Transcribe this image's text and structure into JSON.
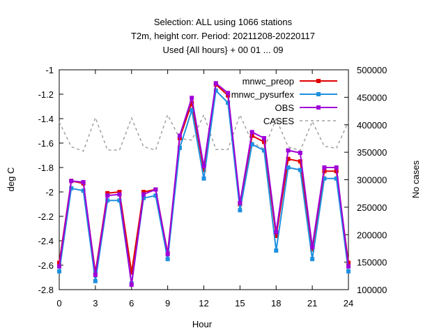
{
  "chart_data": {
    "type": "line",
    "title_lines": [
      "Selection: ALL using  1066 stations",
      "T2m, height corr.   Period: 20211208-20220117",
      "Used {All hours} + 00 01 ... 09"
    ],
    "xlabel": "Hour",
    "ylabel": "deg C",
    "y2label": "No cases",
    "xlim": [
      0,
      24
    ],
    "ylim": [
      -2.8,
      -1.0
    ],
    "y2lim": [
      100000,
      500000
    ],
    "x_ticks": [
      "0",
      "3",
      "6",
      "9",
      "12",
      "15",
      "18",
      "21",
      "24"
    ],
    "y_ticks": [
      "-1",
      "-1.2",
      "-1.4",
      "-1.6",
      "-1.8",
      "-2",
      "-2.2",
      "-2.4",
      "-2.6",
      "-2.8"
    ],
    "y2_ticks": [
      "500000",
      "450000",
      "400000",
      "350000",
      "300000",
      "250000",
      "200000",
      "150000",
      "100000"
    ],
    "grid": false,
    "legend_position": "top-right",
    "x": [
      0,
      1,
      2,
      3,
      4,
      5,
      6,
      7,
      8,
      9,
      10,
      11,
      12,
      13,
      14,
      15,
      16,
      17,
      18,
      19,
      20,
      21,
      22,
      23,
      24
    ],
    "series": [
      {
        "name": "mnwc_preop",
        "color": "#e00000",
        "axis": "y",
        "style": "line-square",
        "values": [
          -2.58,
          -1.91,
          -1.93,
          -2.66,
          -2.01,
          -2.0,
          -2.66,
          -2.0,
          -1.98,
          -2.5,
          -1.56,
          -1.27,
          -1.82,
          -1.12,
          -1.21,
          -2.1,
          -1.54,
          -1.59,
          -2.36,
          -1.73,
          -1.75,
          -2.47,
          -1.83,
          -1.83,
          -2.58
        ]
      },
      {
        "name": "mnwc_pysurfex",
        "color": "#1e90e0",
        "axis": "y",
        "style": "line-square",
        "values": [
          -2.65,
          -1.97,
          -1.99,
          -2.73,
          -2.07,
          -2.07,
          -2.75,
          -2.05,
          -2.03,
          -2.55,
          -1.64,
          -1.33,
          -1.89,
          -1.17,
          -1.27,
          -2.15,
          -1.61,
          -1.66,
          -2.48,
          -1.8,
          -1.82,
          -2.55,
          -1.89,
          -1.89,
          -2.65
        ]
      },
      {
        "name": "OBS",
        "color": "#a000d8",
        "axis": "y",
        "style": "line-square",
        "values": [
          -2.61,
          -1.91,
          -1.92,
          -2.68,
          -2.03,
          -2.02,
          -2.76,
          -2.02,
          -1.98,
          -2.51,
          -1.54,
          -1.23,
          -1.79,
          -1.11,
          -1.19,
          -2.09,
          -1.51,
          -1.56,
          -2.33,
          -1.66,
          -1.68,
          -2.45,
          -1.8,
          -1.8,
          -2.61
        ]
      },
      {
        "name": "CASES",
        "color": "#a0a0a0",
        "axis": "y2",
        "style": "dashed",
        "values": [
          405000,
          360000,
          352000,
          413000,
          354000,
          354000,
          412000,
          360000,
          354000,
          418000,
          375000,
          372000,
          418000,
          355000,
          355000,
          418000,
          368000,
          356000,
          411000,
          360000,
          353000,
          406000,
          361000,
          357000,
          406000
        ]
      }
    ]
  }
}
